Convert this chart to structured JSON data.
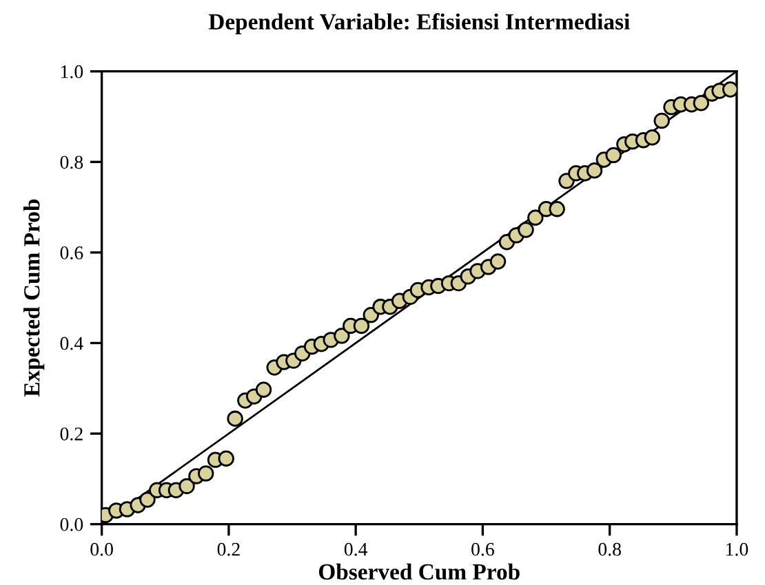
{
  "chart_data": {
    "type": "scatter",
    "title": "Dependent Variable: Efisiensi Intermediasi",
    "xlabel": "Observed Cum Prob",
    "ylabel": "Expected Cum Prob",
    "xlim": [
      0,
      1
    ],
    "ylim": [
      0,
      1
    ],
    "xticks": [
      {
        "value": 0,
        "label": "0.0"
      },
      {
        "value": 0.2,
        "label": "0.2"
      },
      {
        "value": 0.4,
        "label": "0.4"
      },
      {
        "value": 0.6,
        "label": "0.6"
      },
      {
        "value": 0.8,
        "label": "0.8"
      },
      {
        "value": 1,
        "label": "1.0"
      }
    ],
    "yticks": [
      {
        "value": 0,
        "label": "0.0"
      },
      {
        "value": 0.2,
        "label": "0.2"
      },
      {
        "value": 0.4,
        "label": "0.4"
      },
      {
        "value": 0.6,
        "label": "0.6"
      },
      {
        "value": 0.8,
        "label": "0.8"
      },
      {
        "value": 1,
        "label": "1.0"
      }
    ],
    "grid": false,
    "legend": false,
    "marker": "circle",
    "series": [
      {
        "color": "#d9d29c",
        "x": [
          0.006,
          0.023,
          0.04,
          0.057,
          0.072,
          0.087,
          0.102,
          0.117,
          0.134,
          0.149,
          0.164,
          0.179,
          0.196,
          0.21,
          0.226,
          0.24,
          0.255,
          0.272,
          0.287,
          0.302,
          0.316,
          0.331,
          0.346,
          0.361,
          0.378,
          0.392,
          0.409,
          0.424,
          0.439,
          0.454,
          0.469,
          0.486,
          0.498,
          0.515,
          0.53,
          0.547,
          0.562,
          0.577,
          0.592,
          0.609,
          0.624,
          0.638,
          0.653,
          0.668,
          0.683,
          0.7,
          0.717,
          0.732,
          0.747,
          0.761,
          0.776,
          0.791,
          0.806,
          0.823,
          0.836,
          0.853,
          0.867,
          0.882,
          0.897,
          0.912,
          0.929,
          0.944,
          0.961,
          0.973,
          0.99
        ],
        "values": [
          0.02,
          0.03,
          0.033,
          0.042,
          0.054,
          0.075,
          0.075,
          0.075,
          0.084,
          0.106,
          0.112,
          0.142,
          0.145,
          0.233,
          0.273,
          0.282,
          0.297,
          0.346,
          0.358,
          0.361,
          0.377,
          0.392,
          0.398,
          0.407,
          0.416,
          0.438,
          0.438,
          0.462,
          0.48,
          0.48,
          0.493,
          0.502,
          0.517,
          0.523,
          0.526,
          0.532,
          0.532,
          0.547,
          0.559,
          0.568,
          0.58,
          0.623,
          0.638,
          0.65,
          0.677,
          0.696,
          0.696,
          0.758,
          0.775,
          0.775,
          0.781,
          0.805,
          0.815,
          0.839,
          0.845,
          0.848,
          0.854,
          0.891,
          0.921,
          0.927,
          0.927,
          0.93,
          0.951,
          0.957,
          0.96
        ]
      },
      {
        "type": "line",
        "color": "#000000",
        "x": [
          0,
          1
        ],
        "values": [
          0,
          1
        ],
        "marker": "none",
        "line_style": "solid"
      }
    ]
  }
}
